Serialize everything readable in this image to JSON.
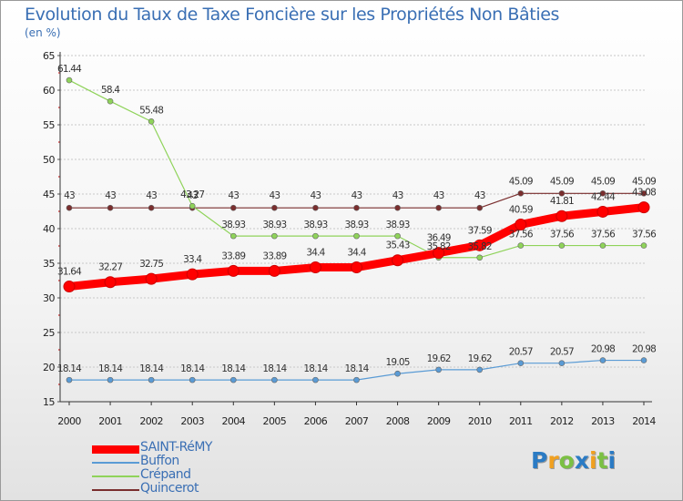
{
  "header": {
    "title": "Evolution du Taux de Taxe Foncière sur les Propriétés Non Bâties",
    "subtitle": "(en %)"
  },
  "chart_data": {
    "type": "line",
    "title": "Evolution du Taux de Taxe Foncière sur les Propriétés Non Bâties",
    "subtitle": "(en %)",
    "xlabel": "",
    "ylabel": "",
    "x": [
      "2000",
      "2001",
      "2002",
      "2003",
      "2004",
      "2005",
      "2006",
      "2007",
      "2008",
      "2009",
      "2010",
      "2011",
      "2012",
      "2013",
      "2014"
    ],
    "ylim": [
      15,
      65
    ],
    "yticks": [
      15,
      20,
      25,
      30,
      35,
      40,
      45,
      50,
      55,
      60,
      65
    ],
    "grid": "horizontal dashed",
    "legend_position": "bottom-left",
    "series": [
      {
        "name": "SAINT-RéMY",
        "color": "#ff0000",
        "width": "thick",
        "values": [
          31.64,
          32.27,
          32.75,
          33.4,
          33.89,
          33.89,
          34.4,
          34.4,
          35.43,
          36.49,
          37.59,
          40.59,
          41.81,
          42.44,
          43.08
        ],
        "labels": [
          "31.64",
          "32.27",
          "32.75",
          "33.4",
          "33.89",
          "33.89",
          "34.4",
          "34.4",
          "35.43",
          "36.49",
          "37.59",
          "40.59",
          "41.81",
          "42.44",
          "43.08"
        ]
      },
      {
        "name": "Buffon",
        "color": "#5a9bd5",
        "width": "thin",
        "values": [
          18.14,
          18.14,
          18.14,
          18.14,
          18.14,
          18.14,
          18.14,
          18.14,
          19.05,
          19.62,
          19.62,
          20.57,
          20.57,
          20.98,
          20.98
        ],
        "labels": [
          "18.14",
          "18.14",
          "18.14",
          "18.14",
          "18.14",
          "18.14",
          "18.14",
          "18.14",
          "19.05",
          "19.62",
          "19.62",
          "20.57",
          "20.57",
          "20.98",
          "20.98"
        ]
      },
      {
        "name": "Crépand",
        "color": "#8fd35a",
        "width": "thin",
        "values": [
          61.44,
          58.4,
          55.48,
          43.27,
          38.93,
          38.93,
          38.93,
          38.93,
          38.93,
          35.82,
          35.82,
          37.56,
          37.56,
          37.56,
          37.56
        ],
        "labels": [
          "61.44",
          "58.4",
          "55.48",
          "43.27",
          "38.93",
          "38.93",
          "38.93",
          "38.93",
          "38.93",
          "35.82",
          "35.82",
          "37.56",
          "37.56",
          "37.56",
          "37.56"
        ]
      },
      {
        "name": "Quincerot",
        "color": "#7a2e2e",
        "width": "thin",
        "values": [
          43,
          43,
          43,
          43,
          43,
          43,
          43,
          43,
          43,
          43,
          43,
          45.09,
          45.09,
          45.09,
          45.09
        ],
        "labels": [
          "43",
          "43",
          "43",
          "43",
          "43",
          "43",
          "43",
          "43",
          "43",
          "43",
          "43",
          "45.09",
          "45.09",
          "45.09",
          "45.09"
        ]
      }
    ]
  },
  "legend": {
    "items": [
      "SAINT-RéMY",
      "Buffon",
      "Crépand",
      "Quincerot"
    ]
  },
  "brand": {
    "letters": [
      "P",
      "r",
      "o",
      "x",
      "i",
      "t",
      "i"
    ],
    "colors": [
      "#2b7bc4",
      "#f0a020",
      "#7bc043",
      "#2b7bc4",
      "#f0a020",
      "#7bc043",
      "#2b7bc4"
    ]
  }
}
